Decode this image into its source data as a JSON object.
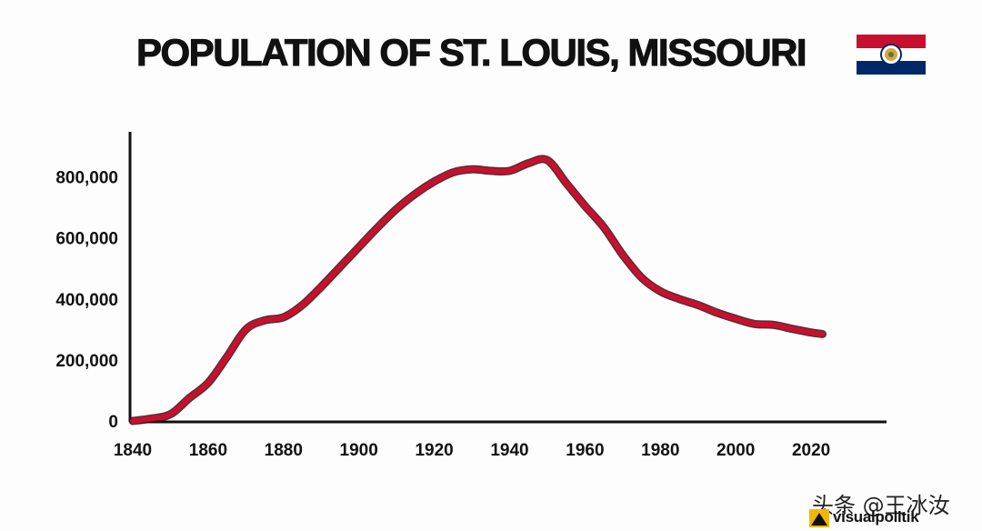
{
  "header": {
    "title": "POPULATION OF ST. LOUIS, MISSOURI",
    "flag_icon": "missouri-flag-icon"
  },
  "chart_data": {
    "type": "line",
    "title": "POPULATION OF ST. LOUIS, MISSOURI",
    "xlabel": "",
    "ylabel": "",
    "xlim": [
      1840,
      2030
    ],
    "ylim": [
      0,
      900000
    ],
    "x_ticks": [
      {
        "value": 1840,
        "label": "1840"
      },
      {
        "value": 1860,
        "label": "1860"
      },
      {
        "value": 1880,
        "label": "1880"
      },
      {
        "value": 1900,
        "label": "1900"
      },
      {
        "value": 1920,
        "label": "1920"
      },
      {
        "value": 1940,
        "label": "1940"
      },
      {
        "value": 1960,
        "label": "1960"
      },
      {
        "value": 1980,
        "label": "1980"
      },
      {
        "value": 2000,
        "label": "2000"
      },
      {
        "value": 2020,
        "label": "2020"
      }
    ],
    "y_ticks": [
      {
        "value": 0,
        "label": "0"
      },
      {
        "value": 200000,
        "label": "200,000"
      },
      {
        "value": 400000,
        "label": "400,000"
      },
      {
        "value": 600000,
        "label": "600,000"
      },
      {
        "value": 800000,
        "label": "800,000"
      }
    ],
    "grid": false,
    "legend": "none",
    "series": [
      {
        "name": "Population",
        "color": "#c8102e",
        "x": [
          1840,
          1845,
          1850,
          1855,
          1860,
          1865,
          1870,
          1875,
          1880,
          1885,
          1890,
          1895,
          1900,
          1905,
          1910,
          1915,
          1920,
          1925,
          1930,
          1935,
          1940,
          1945,
          1950,
          1955,
          1960,
          1965,
          1970,
          1975,
          1980,
          1985,
          1990,
          1995,
          2000,
          2005,
          2010,
          2015,
          2020,
          2023
        ],
        "values": [
          0,
          8000,
          22000,
          75000,
          125000,
          210000,
          300000,
          330000,
          340000,
          380000,
          440000,
          505000,
          570000,
          635000,
          695000,
          745000,
          785000,
          815000,
          825000,
          820000,
          820000,
          845000,
          855000,
          780000,
          705000,
          635000,
          545000,
          470000,
          425000,
          400000,
          380000,
          355000,
          335000,
          318000,
          315000,
          302000,
          290000,
          285000
        ]
      }
    ]
  },
  "watermark": {
    "text": "头条 @王冰汝",
    "logo_text": "visualpolitik",
    "logo_icon": "visualpolitik-logo-icon"
  }
}
